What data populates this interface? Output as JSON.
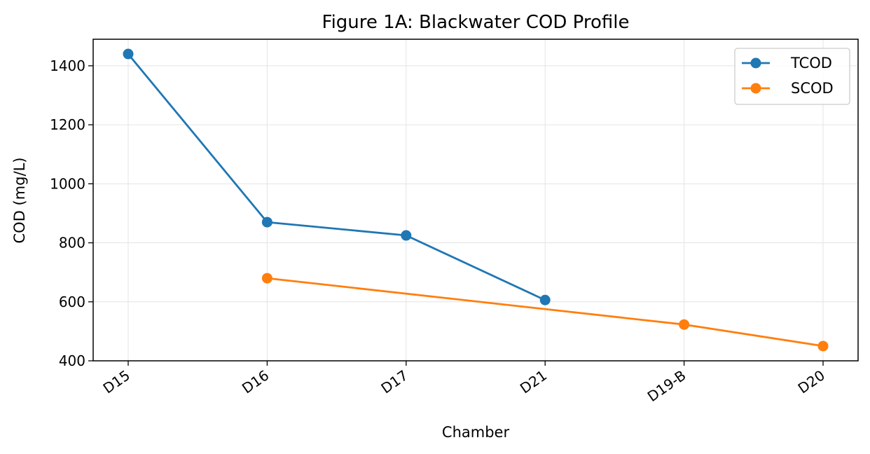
{
  "chart_data": {
    "type": "line",
    "title": "Figure 1A: Blackwater COD Profile",
    "xlabel": "Chamber",
    "ylabel": "COD (mg/L)",
    "categories": [
      "D15",
      "D16",
      "D17",
      "D21",
      "D19-B",
      "D20"
    ],
    "ylim": [
      400,
      1490
    ],
    "yticks": [
      400,
      600,
      800,
      1000,
      1200,
      1400
    ],
    "grid": true,
    "legend_position": "top-right",
    "series": [
      {
        "name": "TCOD",
        "color": "#1f77b4",
        "values": [
          1440,
          870,
          825,
          606,
          null,
          null
        ]
      },
      {
        "name": "SCOD",
        "color": "#ff7f0e",
        "values": [
          null,
          680,
          null,
          null,
          523,
          450
        ]
      }
    ]
  }
}
